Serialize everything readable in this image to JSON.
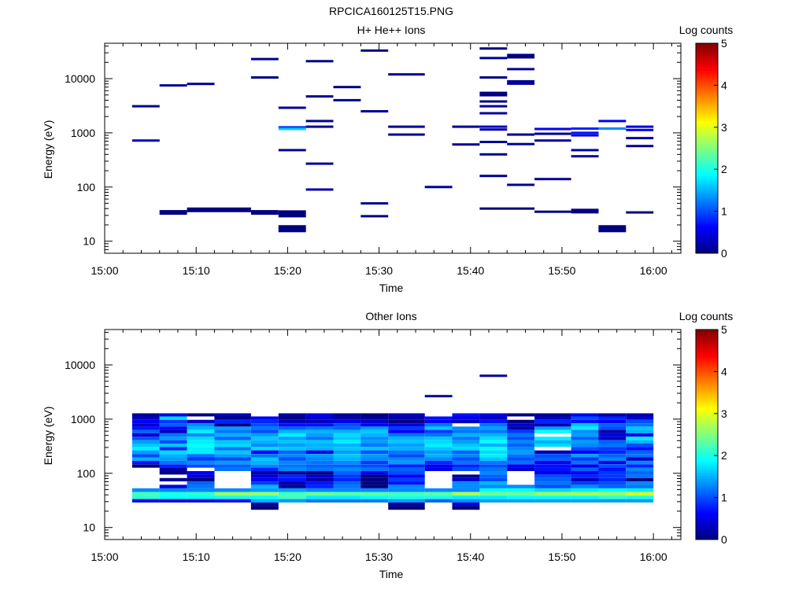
{
  "figure": {
    "title": "RPCICA160125T15.PNG"
  },
  "panels": [
    {
      "subtitle": "H+ He++ Ions",
      "colorbar_label": "Log counts",
      "ylabel": "Energy (eV)",
      "xlabel": "Time"
    },
    {
      "subtitle": "Other Ions",
      "colorbar_label": "Log counts",
      "ylabel": "Energy (eV)",
      "xlabel": "Time"
    }
  ],
  "chart_data": [
    {
      "type": "heatmap",
      "title": "H+ He++ Ions",
      "xlabel": "Time",
      "ylabel": "Energy (eV)",
      "ylog": true,
      "xlim": [
        "15:00",
        "16:03"
      ],
      "ylim": [
        6,
        45000
      ],
      "x_ticks": [
        "15:00",
        "15:10",
        "15:20",
        "15:30",
        "15:40",
        "15:50",
        "16:00"
      ],
      "y_ticks": [
        "10",
        "100",
        "1000",
        "10000"
      ],
      "colorbar": {
        "label": "Log counts",
        "range": [
          0,
          5
        ],
        "ticks": [
          "0",
          "1",
          "2",
          "3",
          "4",
          "5"
        ]
      },
      "cells": [
        {
          "t0": 3,
          "t1": 6,
          "e": 3100,
          "v": 0.1
        },
        {
          "t0": 3,
          "t1": 6,
          "e": 720,
          "v": 0.4
        },
        {
          "t0": 6,
          "t1": 9,
          "e": 7500,
          "v": 0.1
        },
        {
          "t0": 6,
          "t1": 9,
          "e": 34,
          "v": 0.0,
          "h": 2
        },
        {
          "t0": 9,
          "t1": 12,
          "e": 8000,
          "v": 0.1
        },
        {
          "t0": 9,
          "t1": 12,
          "e": 38,
          "v": 0.0,
          "h": 2
        },
        {
          "t0": 12,
          "t1": 16,
          "e": 38,
          "v": 0.0,
          "h": 2
        },
        {
          "t0": 16,
          "t1": 19,
          "e": 23000,
          "v": 0.1
        },
        {
          "t0": 16,
          "t1": 19,
          "e": 10500,
          "v": 0.0
        },
        {
          "t0": 16,
          "t1": 19,
          "e": 34,
          "v": 0.0,
          "h": 2
        },
        {
          "t0": 19,
          "t1": 22,
          "e": 2900,
          "v": 0.1
        },
        {
          "t0": 19,
          "t1": 22,
          "e": 1270,
          "v": 0.9
        },
        {
          "t0": 19,
          "t1": 22,
          "e": 1180,
          "v": 1.6
        },
        {
          "t0": 19,
          "t1": 22,
          "e": 480,
          "v": 0.1
        },
        {
          "t0": 19,
          "t1": 22,
          "e": 32,
          "v": 0.0,
          "h": 3
        },
        {
          "t0": 19,
          "t1": 22,
          "e": 17,
          "v": 0.0,
          "h": 3
        },
        {
          "t0": 22,
          "t1": 25,
          "e": 21000,
          "v": 0.0
        },
        {
          "t0": 22,
          "t1": 25,
          "e": 4700,
          "v": 0.1
        },
        {
          "t0": 22,
          "t1": 25,
          "e": 1650,
          "v": 0.1
        },
        {
          "t0": 22,
          "t1": 25,
          "e": 1300,
          "v": 0.1
        },
        {
          "t0": 22,
          "t1": 25,
          "e": 270,
          "v": 0.1
        },
        {
          "t0": 22,
          "t1": 25,
          "e": 90,
          "v": 0.2
        },
        {
          "t0": 25,
          "t1": 28,
          "e": 7000,
          "v": 0.0
        },
        {
          "t0": 25,
          "t1": 28,
          "e": 4000,
          "v": 0.1
        },
        {
          "t0": 28,
          "t1": 31,
          "e": 33000,
          "v": 0.0
        },
        {
          "t0": 28,
          "t1": 31,
          "e": 2500,
          "v": 0.1
        },
        {
          "t0": 28,
          "t1": 31,
          "e": 50,
          "v": 0.0
        },
        {
          "t0": 28,
          "t1": 31,
          "e": 29,
          "v": 0.0
        },
        {
          "t0": 31,
          "t1": 35,
          "e": 12000,
          "v": 0.1
        },
        {
          "t0": 31,
          "t1": 35,
          "e": 1300,
          "v": 0.1
        },
        {
          "t0": 31,
          "t1": 35,
          "e": 930,
          "v": 0.1
        },
        {
          "t0": 35,
          "t1": 38,
          "e": 100,
          "v": 0.1
        },
        {
          "t0": 38,
          "t1": 41,
          "e": 1300,
          "v": 0.1
        },
        {
          "t0": 38,
          "t1": 41,
          "e": 610,
          "v": 0.1
        },
        {
          "t0": 41,
          "t1": 44,
          "e": 36000,
          "v": 0.0
        },
        {
          "t0": 41,
          "t1": 44,
          "e": 24000,
          "v": 0.1
        },
        {
          "t0": 41,
          "t1": 44,
          "e": 10500,
          "v": 0.0
        },
        {
          "t0": 41,
          "t1": 44,
          "e": 5200,
          "v": 0.0,
          "h": 2
        },
        {
          "t0": 41,
          "t1": 44,
          "e": 3800,
          "v": 0.0
        },
        {
          "t0": 41,
          "t1": 44,
          "e": 3100,
          "v": 0.1
        },
        {
          "t0": 41,
          "t1": 44,
          "e": 2300,
          "v": 0.1
        },
        {
          "t0": 41,
          "t1": 44,
          "e": 1300,
          "v": 0.3
        },
        {
          "t0": 41,
          "t1": 44,
          "e": 1150,
          "v": 0.2
        },
        {
          "t0": 41,
          "t1": 44,
          "e": 680,
          "v": 0.1
        },
        {
          "t0": 41,
          "t1": 44,
          "e": 400,
          "v": 0.1
        },
        {
          "t0": 41,
          "t1": 44,
          "e": 160,
          "v": 0.1
        },
        {
          "t0": 41,
          "t1": 44,
          "e": 40,
          "v": 0.0
        },
        {
          "t0": 44,
          "t1": 47,
          "e": 26000,
          "v": 0.0,
          "h": 2
        },
        {
          "t0": 44,
          "t1": 47,
          "e": 15000,
          "v": 0.1
        },
        {
          "t0": 44,
          "t1": 47,
          "e": 8500,
          "v": 0.1,
          "h": 2
        },
        {
          "t0": 44,
          "t1": 47,
          "e": 930,
          "v": 0.1
        },
        {
          "t0": 44,
          "t1": 47,
          "e": 620,
          "v": 0.1
        },
        {
          "t0": 44,
          "t1": 47,
          "e": 110,
          "v": 0.1
        },
        {
          "t0": 44,
          "t1": 47,
          "e": 40,
          "v": 0.0
        },
        {
          "t0": 47,
          "t1": 51,
          "e": 1180,
          "v": 0.6
        },
        {
          "t0": 47,
          "t1": 51,
          "e": 960,
          "v": 0.1
        },
        {
          "t0": 47,
          "t1": 51,
          "e": 720,
          "v": 0.2
        },
        {
          "t0": 47,
          "t1": 51,
          "e": 140,
          "v": 0.1
        },
        {
          "t0": 47,
          "t1": 51,
          "e": 35,
          "v": 0.0
        },
        {
          "t0": 51,
          "t1": 54,
          "e": 1200,
          "v": 0.8
        },
        {
          "t0": 51,
          "t1": 54,
          "e": 1000,
          "v": 0.7
        },
        {
          "t0": 51,
          "t1": 54,
          "e": 900,
          "v": 0.5
        },
        {
          "t0": 51,
          "t1": 54,
          "e": 480,
          "v": 0.2
        },
        {
          "t0": 51,
          "t1": 54,
          "e": 370,
          "v": 0.2
        },
        {
          "t0": 51,
          "t1": 54,
          "e": 36,
          "v": 0.0,
          "h": 2
        },
        {
          "t0": 54,
          "t1": 57,
          "e": 1650,
          "v": 0.6
        },
        {
          "t0": 54,
          "t1": 57,
          "e": 1200,
          "v": 1.3
        },
        {
          "t0": 54,
          "t1": 57,
          "e": 17,
          "v": 0.0,
          "h": 3
        },
        {
          "t0": 57,
          "t1": 60,
          "e": 1300,
          "v": 0.5
        },
        {
          "t0": 57,
          "t1": 60,
          "e": 1130,
          "v": 0.6
        },
        {
          "t0": 57,
          "t1": 60,
          "e": 800,
          "v": 0.2
        },
        {
          "t0": 57,
          "t1": 60,
          "e": 570,
          "v": 0.1
        },
        {
          "t0": 57,
          "t1": 60,
          "e": 34,
          "v": 0.0
        }
      ]
    },
    {
      "type": "heatmap",
      "title": "Other Ions",
      "xlabel": "Time",
      "ylabel": "Energy (eV)",
      "ylog": true,
      "xlim": [
        "15:00",
        "16:03"
      ],
      "ylim": [
        6,
        45000
      ],
      "x_ticks": [
        "15:00",
        "15:10",
        "15:20",
        "15:30",
        "15:40",
        "15:50",
        "16:00"
      ],
      "y_ticks": [
        "10",
        "100",
        "1000",
        "10000"
      ],
      "colorbar": {
        "label": "Log counts",
        "range": [
          0,
          5
        ],
        "ticks": [
          "0",
          "1",
          "2",
          "3",
          "4",
          "5"
        ]
      },
      "energy_bins": [
        1200,
        1050,
        900,
        780,
        680,
        590,
        510,
        440,
        380,
        330,
        285,
        245,
        212,
        183,
        158,
        137,
        118,
        102,
        88,
        76,
        66,
        57,
        49,
        42,
        36,
        31,
        27,
        23
      ],
      "time_bins": [
        [
          3,
          6
        ],
        [
          6,
          9
        ],
        [
          9,
          12
        ],
        [
          12,
          16
        ],
        [
          16,
          19
        ],
        [
          19,
          22
        ],
        [
          22,
          25
        ],
        [
          25,
          28
        ],
        [
          28,
          31
        ],
        [
          31,
          35
        ],
        [
          35,
          38
        ],
        [
          38,
          41
        ],
        [
          41,
          44
        ],
        [
          44,
          47
        ],
        [
          47,
          51
        ],
        [
          51,
          54
        ],
        [
          54,
          57
        ],
        [
          57,
          60
        ]
      ],
      "matrix": [
        [
          0.1,
          0.5,
          0.0,
          0.3,
          null,
          0.2,
          0.5,
          0.1,
          0.0,
          0.3,
          null,
          0.7,
          0.5,
          0.0,
          0.1,
          0.6,
          0.2,
          0.2
        ],
        [
          0.3,
          1.7,
          null,
          0.0,
          0.6,
          0.0,
          0.4,
          0.2,
          0.1,
          0.2,
          0.7,
          0.5,
          0.3,
          null,
          0.3,
          1.0,
          0.8,
          0.4
        ],
        [
          0.6,
          0.9,
          0.4,
          0.8,
          0.8,
          0.3,
          0.3,
          0.5,
          0.4,
          0.0,
          0.6,
          0.3,
          0.7,
          0.0,
          0.8,
          0.7,
          0.6,
          1.0
        ],
        [
          0.4,
          1.1,
          1.3,
          0.0,
          1.0,
          0.7,
          0.7,
          1.0,
          0.6,
          0.5,
          1.2,
          null,
          1.2,
          0.4,
          0.2,
          1.6,
          1.1,
          1.2
        ],
        [
          0.7,
          0.6,
          1.5,
          1.4,
          1.2,
          1.1,
          1.2,
          1.1,
          1.4,
          0.9,
          1.6,
          1.3,
          1.4,
          0.2,
          1.4,
          1.8,
          1.0,
          1.6
        ],
        [
          1.1,
          0.3,
          1.8,
          1.2,
          1.0,
          1.5,
          1.5,
          1.5,
          1.6,
          0.6,
          0.9,
          1.2,
          1.2,
          0.9,
          1.9,
          1.3,
          0.2,
          1.5
        ],
        [
          0.4,
          1.2,
          1.3,
          1.5,
          1.4,
          1.8,
          1.4,
          1.7,
          1.5,
          1.2,
          1.2,
          1.5,
          1.5,
          1.2,
          null,
          1.4,
          0.5,
          0.6
        ],
        [
          1.0,
          1.4,
          1.7,
          1.1,
          1.6,
          1.4,
          1.2,
          1.6,
          1.3,
          1.5,
          1.6,
          1.2,
          1.7,
          1.0,
          1.8,
          1.1,
          0.3,
          1.8
        ],
        [
          1.4,
          1.0,
          1.8,
          1.6,
          1.5,
          1.6,
          1.6,
          1.8,
          1.4,
          1.6,
          1.7,
          1.4,
          1.9,
          1.3,
          1.5,
          1.4,
          1.1,
          1.5
        ],
        [
          1.6,
          1.6,
          1.9,
          1.7,
          1.3,
          1.4,
          1.5,
          1.5,
          1.2,
          1.4,
          1.8,
          1.6,
          1.5,
          1.1,
          1.7,
          1.3,
          1.2,
          1.0
        ],
        [
          1.8,
          0.8,
          1.8,
          1.2,
          1.7,
          1.6,
          1.5,
          1.6,
          1.6,
          1.5,
          1.6,
          1.7,
          1.9,
          1.3,
          null,
          1.0,
          0.9,
          0.7
        ],
        [
          1.4,
          1.7,
          1.8,
          1.6,
          0.6,
          1.1,
          0.5,
          1.4,
          1.0,
          1.2,
          1.4,
          1.1,
          1.7,
          1.4,
          0.3,
          0.6,
          0.8,
          1.1
        ],
        [
          1.0,
          1.5,
          1.2,
          1.4,
          1.2,
          1.3,
          1.4,
          1.6,
          1.4,
          1.0,
          1.5,
          1.3,
          1.8,
          1.2,
          1.0,
          1.4,
          1.1,
          1.2
        ],
        [
          1.5,
          1.4,
          0.9,
          1.0,
          1.6,
          1.0,
          1.3,
          1.5,
          1.3,
          1.3,
          1.3,
          1.0,
          1.6,
          1.0,
          1.1,
          0.9,
          1.3,
          0.4
        ],
        [
          0.7,
          1.2,
          1.3,
          1.4,
          1.5,
          1.3,
          1.2,
          1.3,
          0.9,
          1.4,
          0.8,
          1.2,
          1.2,
          1.2,
          0.6,
          1.2,
          0.5,
          1.3
        ],
        [
          0.0,
          0.8,
          1.0,
          1.1,
          1.3,
          1.2,
          1.1,
          1.1,
          1.0,
          0.8,
          0.6,
          0.8,
          1.0,
          0.6,
          0.7,
          0.5,
          1.0,
          0.8
        ],
        [
          null,
          0.2,
          null,
          1.2,
          0.8,
          1.3,
          1.2,
          1.3,
          1.2,
          1.1,
          0.5,
          1.0,
          1.2,
          0.4,
          0.7,
          1.1,
          0.7,
          1.3
        ],
        [
          null,
          0.0,
          0.6,
          null,
          0.2,
          0.1,
          0.0,
          1.1,
          0.6,
          1.0,
          null,
          null,
          1.3,
          null,
          0.5,
          0.6,
          0.9,
          1.1
        ],
        [
          null,
          null,
          0.4,
          null,
          0.4,
          0.8,
          0.4,
          0.9,
          0.0,
          0.6,
          null,
          0.1,
          1.1,
          null,
          1.0,
          0.8,
          0.9,
          1.2
        ],
        [
          null,
          0.1,
          0.0,
          null,
          0.6,
          0.7,
          0.2,
          0.8,
          0.0,
          0.9,
          null,
          0.4,
          1.0,
          null,
          1.1,
          0.3,
          0.8,
          0.0
        ],
        [
          null,
          null,
          1.1,
          null,
          0.9,
          0.2,
          0.7,
          1.1,
          0.0,
          0.7,
          null,
          1.3,
          1.5,
          null,
          1.2,
          0.9,
          1.0,
          1.3
        ],
        [
          null,
          0.5,
          1.2,
          null,
          1.5,
          0.1,
          0.8,
          1.2,
          0.0,
          1.3,
          null,
          1.3,
          1.3,
          1.3,
          1.0,
          1.3,
          1.1,
          1.2
        ],
        [
          1.3,
          1.3,
          1.3,
          1.3,
          1.4,
          1.4,
          1.3,
          1.3,
          1.3,
          1.3,
          1.3,
          1.3,
          1.9,
          1.9,
          1.7,
          1.8,
          1.9,
          1.8
        ],
        [
          2.2,
          2.0,
          2.1,
          2.6,
          2.6,
          2.2,
          2.4,
          2.3,
          2.3,
          2.2,
          2.3,
          2.7,
          2.4,
          2.4,
          2.6,
          2.7,
          2.6,
          2.9
        ],
        [
          2.1,
          1.9,
          1.9,
          2.0,
          1.9,
          2.2,
          1.8,
          1.8,
          1.9,
          2.0,
          2.0,
          1.8,
          1.8,
          1.9,
          1.9,
          1.9,
          2.1,
          2.0
        ],
        [
          0.6,
          0.4,
          0.4,
          0.7,
          1.5,
          1.4,
          1.2,
          1.2,
          1.2,
          1.4,
          1.1,
          1.3,
          1.4,
          1.4,
          1.4,
          1.4,
          1.4,
          1.4
        ],
        [
          null,
          null,
          null,
          null,
          0.1,
          null,
          null,
          null,
          null,
          0.1,
          null,
          0.4,
          null,
          null,
          null,
          null,
          null,
          null
        ],
        [
          null,
          null,
          null,
          null,
          0.0,
          null,
          null,
          null,
          null,
          0.0,
          null,
          0.0,
          null,
          null,
          null,
          null,
          null,
          null
        ]
      ],
      "extra_cells": [
        {
          "t0": 35,
          "t1": 38,
          "e": 2650,
          "v": 0.1
        },
        {
          "t0": 41,
          "t1": 44,
          "e": 6300,
          "v": 0.1
        }
      ]
    }
  ]
}
